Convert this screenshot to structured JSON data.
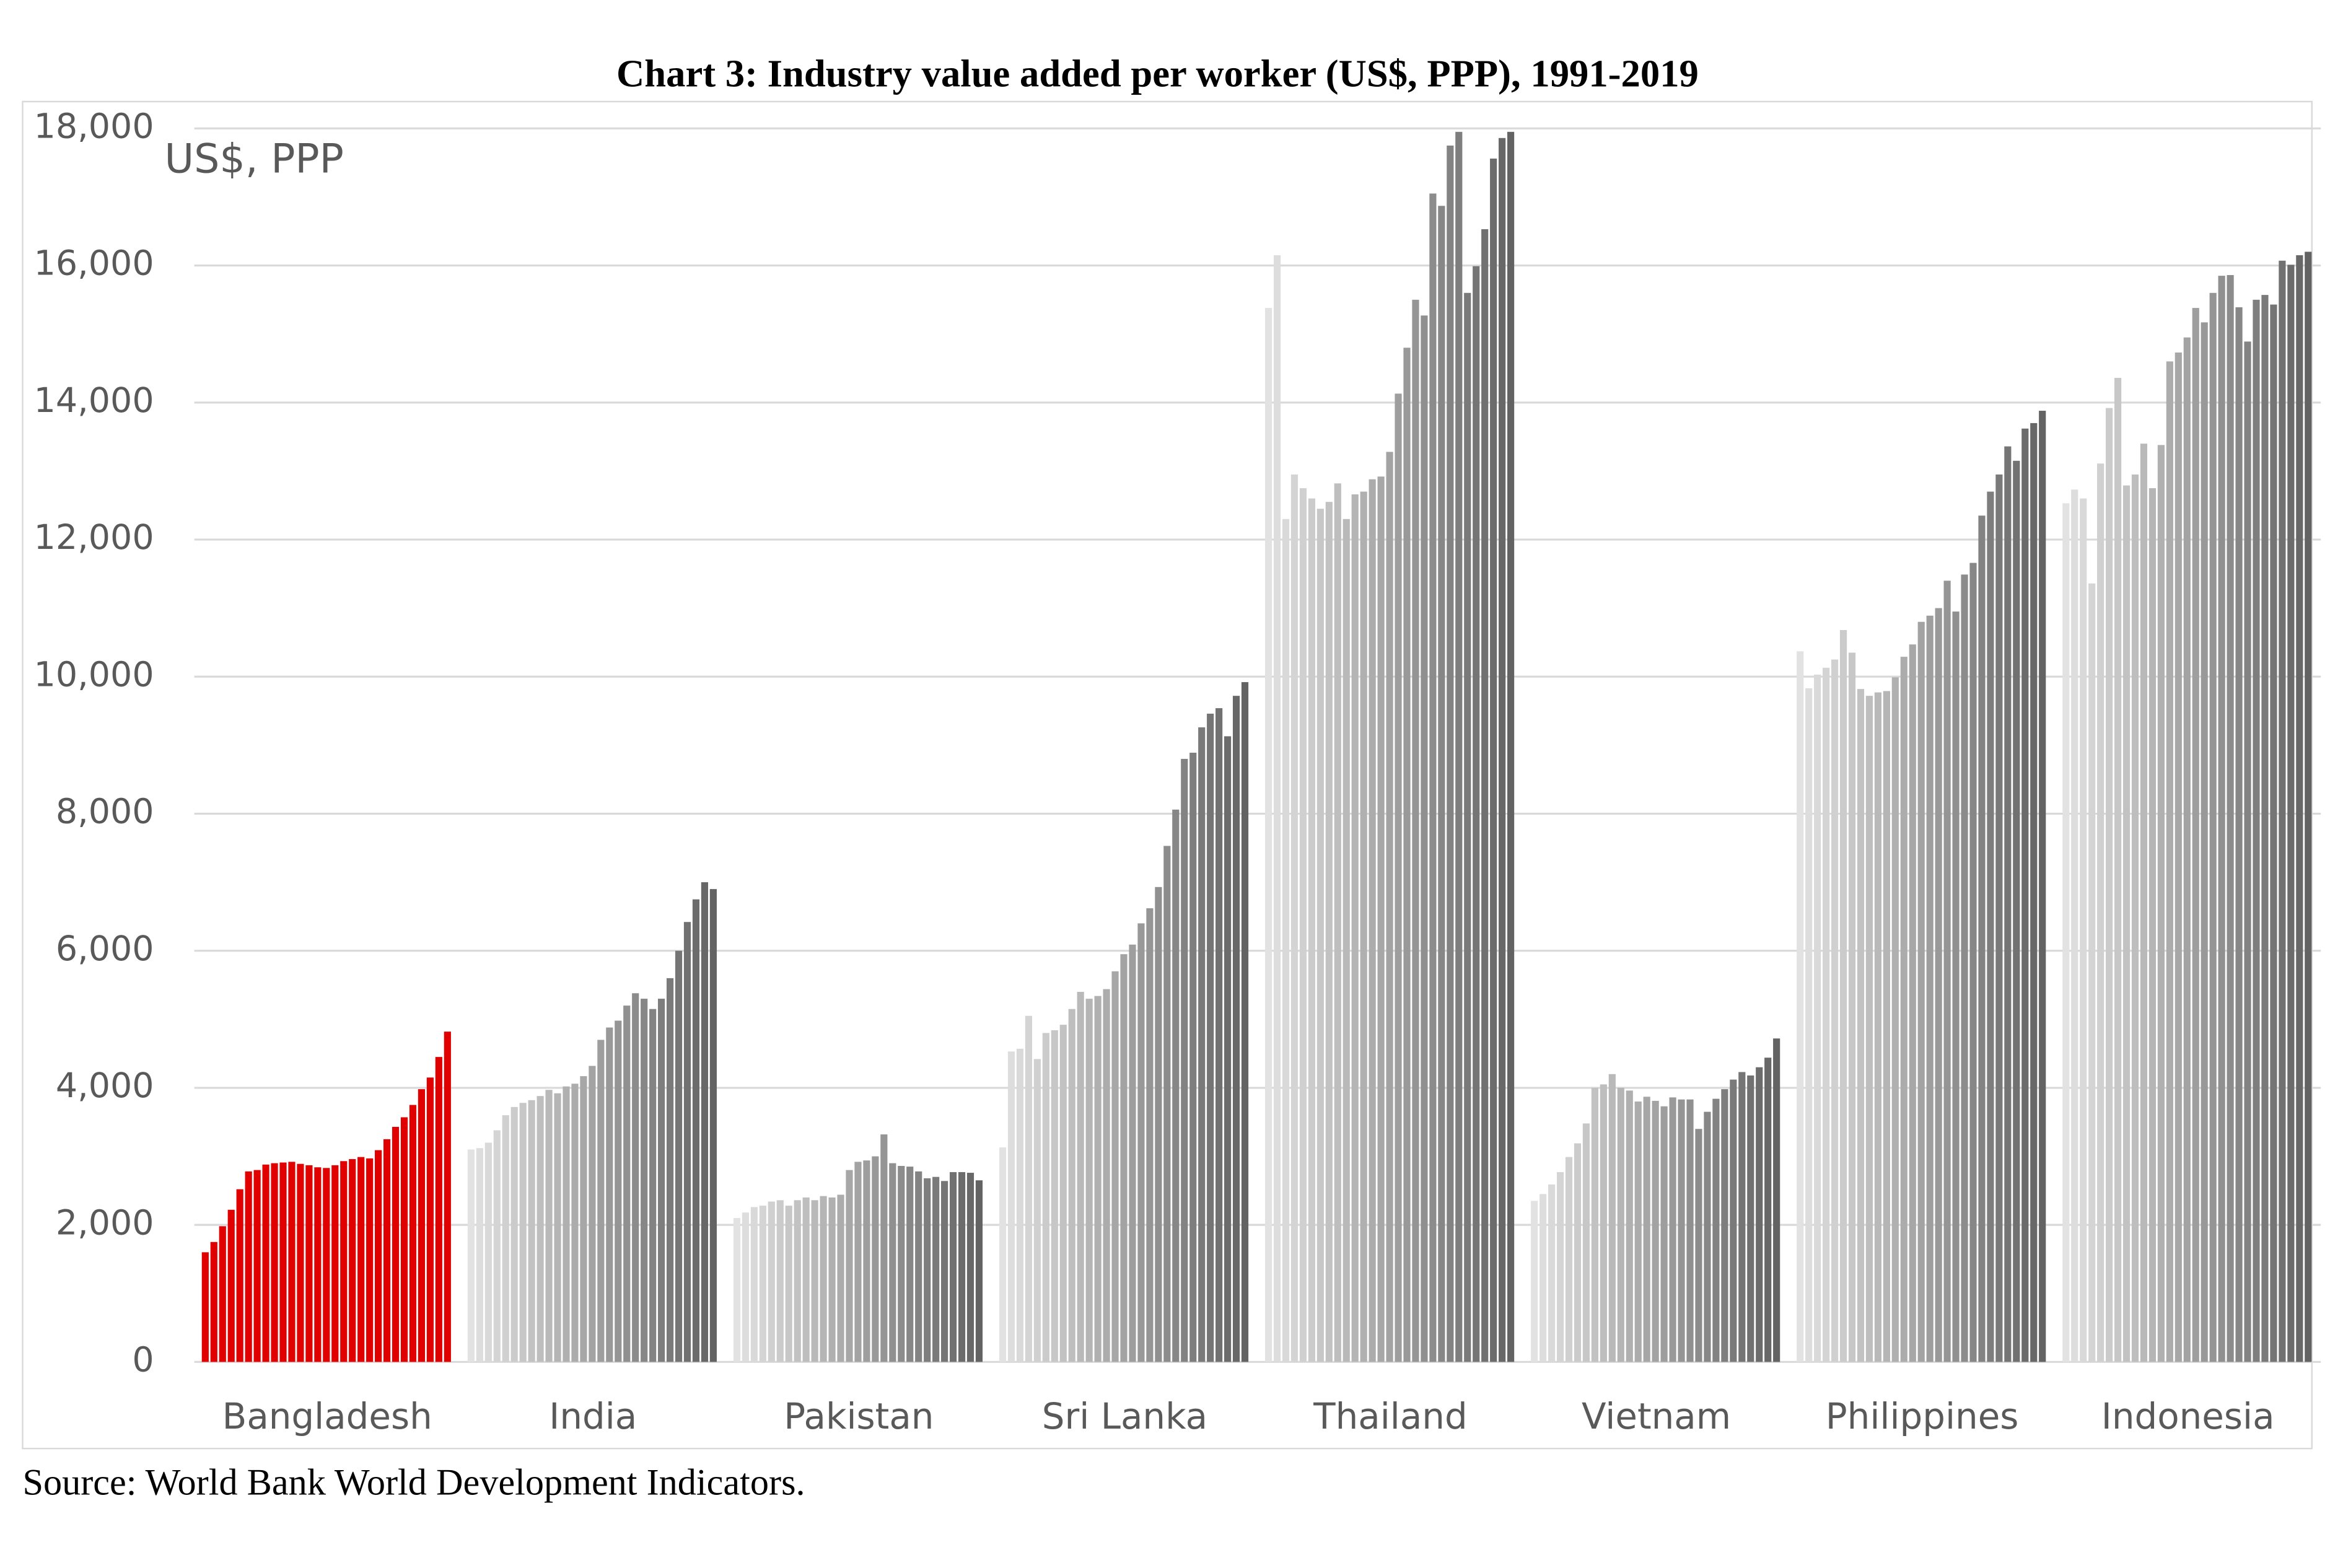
{
  "chart_data": {
    "type": "grouped-bar",
    "title": "Chart 3: Industry value added per worker (US$, PPP), 1991-2019",
    "y_label": "US$, PPP",
    "source": "Source: World Bank World Development Indicators.",
    "ylim": [
      0,
      18000
    ],
    "yticks": [
      0,
      {
        "value": 2000,
        "label": "2,000"
      },
      {
        "value": 4000,
        "label": "4,000"
      },
      {
        "value": 6000,
        "label": "6,000"
      },
      {
        "value": 8000,
        "label": "8,000"
      },
      {
        "value": 10000,
        "label": "10,000"
      },
      {
        "value": 12000,
        "label": "12,000"
      },
      {
        "value": 14000,
        "label": "14,000"
      },
      {
        "value": 16000,
        "label": "16,000"
      },
      {
        "value": 18000,
        "label": "18,000"
      }
    ],
    "grid": true,
    "groups": [
      {
        "name": "Bangladesh",
        "colors": [
          "#e00000",
          "#e00000"
        ],
        "values": [
          1600,
          1750,
          1980,
          2220,
          2520,
          2780,
          2800,
          2880,
          2900,
          2910,
          2920,
          2890,
          2870,
          2840,
          2830,
          2870,
          2930,
          2960,
          2990,
          2970,
          3090,
          3250,
          3430,
          3570,
          3750,
          3980,
          4150,
          4450,
          4820
        ]
      },
      {
        "name": "India",
        "colors": [
          "#e2e2e2",
          "#636363"
        ],
        "values": [
          3100,
          3120,
          3200,
          3380,
          3600,
          3720,
          3780,
          3820,
          3880,
          3970,
          3920,
          4020,
          4060,
          4170,
          4320,
          4700,
          4880,
          4980,
          5200,
          5380,
          5300,
          5150,
          5300,
          5600,
          6000,
          6420,
          6750,
          7000,
          6900
        ]
      },
      {
        "name": "Pakistan",
        "colors": [
          "#e2e2e2",
          "#636363"
        ],
        "values": [
          2100,
          2180,
          2260,
          2280,
          2340,
          2360,
          2280,
          2360,
          2400,
          2360,
          2420,
          2400,
          2440,
          2800,
          2920,
          2940,
          3000,
          3320,
          2900,
          2860,
          2850,
          2780,
          2680,
          2700,
          2640,
          2770,
          2770,
          2760,
          2650
        ]
      },
      {
        "name": "Sri Lanka",
        "colors": [
          "#e2e2e2",
          "#636363"
        ],
        "values": [
          3130,
          4530,
          4570,
          5050,
          4420,
          4800,
          4840,
          4920,
          5150,
          5400,
          5300,
          5340,
          5440,
          5700,
          5950,
          6090,
          6400,
          6620,
          6930,
          7530,
          8060,
          8800,
          8890,
          9260,
          9460,
          9540,
          9130,
          9720,
          9920
        ]
      },
      {
        "name": "Thailand",
        "colors": [
          "#e2e2e2",
          "#636363"
        ],
        "values": [
          15380,
          16150,
          12300,
          12950,
          12750,
          12600,
          12450,
          12550,
          12820,
          12300,
          12660,
          12700,
          12880,
          12920,
          13280,
          14130,
          14800,
          15500,
          15270,
          17050,
          16870,
          17750,
          17950,
          15600,
          15990,
          16530,
          17560,
          17860,
          17950
        ]
      },
      {
        "name": "Vietnam",
        "colors": [
          "#e2e2e2",
          "#636363"
        ],
        "values": [
          2350,
          2450,
          2590,
          2770,
          2990,
          3190,
          3480,
          4000,
          4050,
          4200,
          4000,
          3960,
          3800,
          3870,
          3810,
          3730,
          3860,
          3830,
          3830,
          3400,
          3650,
          3840,
          3980,
          4120,
          4230,
          4180,
          4300,
          4440,
          4720
        ]
      },
      {
        "name": "Philippines",
        "colors": [
          "#e2e2e2",
          "#636363"
        ],
        "values": [
          10370,
          9830,
          10030,
          10130,
          10250,
          10680,
          10350,
          9820,
          9720,
          9770,
          9790,
          9990,
          10290,
          10470,
          10800,
          10890,
          11000,
          11400,
          10950,
          11490,
          11660,
          12350,
          12700,
          12950,
          13360,
          13150,
          13620,
          13700,
          13880
        ]
      },
      {
        "name": "Indonesia",
        "colors": [
          "#e2e2e2",
          "#636363"
        ],
        "values": [
          12530,
          12730,
          12600,
          11360,
          13110,
          13920,
          14360,
          12790,
          12950,
          13400,
          12750,
          13380,
          14600,
          14730,
          14950,
          15380,
          15170,
          15600,
          15850,
          15860,
          15390,
          14890,
          15500,
          15570,
          15430,
          16070,
          16010,
          16150,
          16200
        ]
      }
    ]
  }
}
